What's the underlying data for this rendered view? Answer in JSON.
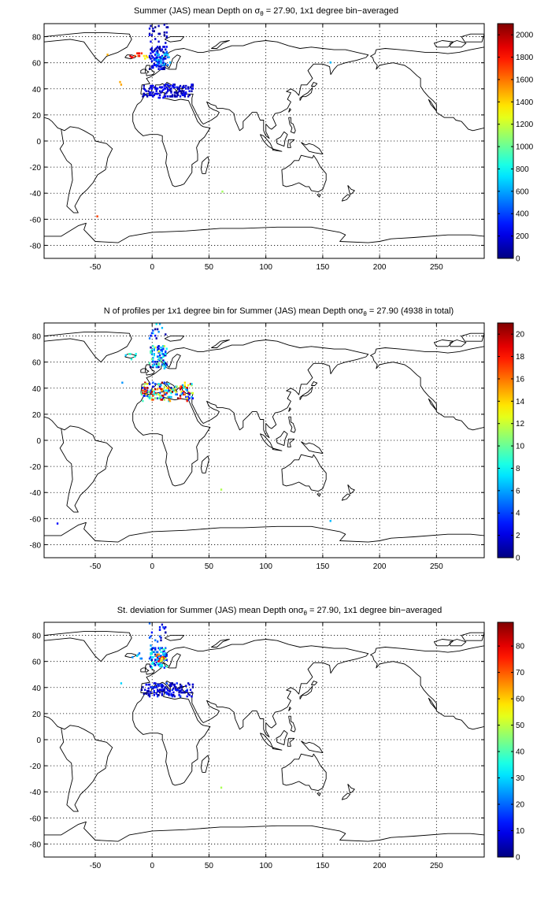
{
  "panels": [
    {
      "title_pre": "Summer (JAS) mean Depth on ",
      "title_post": " = 27.90, 1x1 degree bin−averaged",
      "colorbar": {
        "min": 0,
        "max": 2100,
        "ticks": [
          "0",
          "200",
          "400",
          "600",
          "800",
          "1000",
          "1200",
          "1400",
          "1600",
          "1800",
          "2000"
        ],
        "tick_values": [
          0,
          200,
          400,
          600,
          800,
          1000,
          1200,
          1400,
          1600,
          1800,
          2000
        ]
      }
    },
    {
      "title_pre": "N of profiles per 1x1 degree bin for Summer (JAS) mean Depth on",
      "title_post": " = 27.90 (4938 in total)",
      "colorbar": {
        "min": 0,
        "max": 21,
        "ticks": [
          "0",
          "2",
          "4",
          "6",
          "8",
          "10",
          "12",
          "14",
          "16",
          "18",
          "20"
        ],
        "tick_values": [
          0,
          2,
          4,
          6,
          8,
          10,
          12,
          14,
          16,
          18,
          20
        ]
      }
    },
    {
      "title_pre": "St. deviation for Summer (JAS) mean Depth on",
      "title_post": " = 27.90, 1x1 degree bin−averaged",
      "colorbar": {
        "min": 0,
        "max": 89,
        "ticks": [
          "0",
          "10",
          "20",
          "30",
          "40",
          "50",
          "60",
          "70",
          "80"
        ],
        "tick_values": [
          0,
          10,
          20,
          30,
          40,
          50,
          60,
          70,
          80
        ]
      }
    }
  ],
  "sigma_symbol": "σ",
  "sigma_subscript": "θ",
  "map": {
    "lon_range": [
      -95,
      292
    ],
    "lat_range": [
      -90,
      90
    ],
    "xticks": [
      "-50",
      "0",
      "50",
      "100",
      "150",
      "200",
      "250"
    ],
    "xtick_values": [
      -50,
      0,
      50,
      100,
      150,
      200,
      250
    ],
    "yticks": [
      "80",
      "60",
      "40",
      "20",
      "0",
      "-20",
      "-40",
      "-60",
      "-80"
    ],
    "ytick_values": [
      80,
      60,
      40,
      20,
      0,
      -20,
      -40,
      -60,
      -80
    ],
    "grid": true,
    "colormap": "jet"
  }
}
